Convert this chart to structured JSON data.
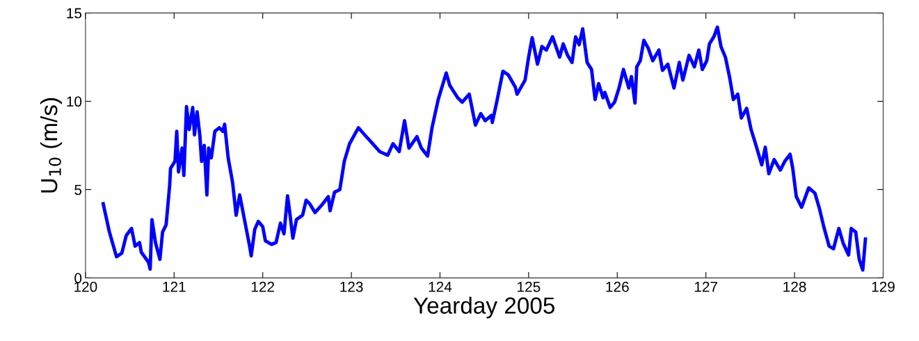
{
  "chart_data": {
    "type": "line",
    "xlabel": "Yearday 2005",
    "ylabel": "U$_{10}$ (m/s)",
    "xlim": [
      120,
      129
    ],
    "xticks": [
      120,
      121,
      122,
      123,
      124,
      125,
      126,
      127,
      128,
      129
    ],
    "ylim": [
      0,
      15
    ],
    "yticks": [
      0,
      5,
      10,
      15
    ],
    "grid": false,
    "marker": "none",
    "line_style": "solid",
    "series": [
      {
        "color": "#0000ff",
        "x": [
          120.2,
          120.27,
          120.35,
          120.41,
          120.46,
          120.52,
          120.56,
          120.61,
          120.63,
          120.71,
          120.73,
          120.75,
          120.79,
          120.84,
          120.87,
          120.91,
          120.95,
          120.96,
          121.01,
          121.03,
          121.05,
          121.09,
          121.11,
          121.14,
          121.17,
          121.21,
          121.23,
          121.26,
          121.29,
          121.31,
          121.34,
          121.37,
          121.39,
          121.42,
          121.46,
          121.51,
          121.55,
          121.57,
          121.61,
          121.66,
          121.7,
          121.74,
          121.79,
          121.85,
          121.87,
          121.91,
          121.95,
          122.0,
          122.03,
          122.1,
          122.15,
          122.2,
          122.24,
          122.28,
          122.3,
          122.34,
          122.38,
          122.45,
          122.49,
          122.53,
          122.59,
          122.67,
          122.74,
          122.76,
          122.81,
          122.87,
          122.92,
          122.98,
          123.08,
          123.15,
          123.24,
          123.32,
          123.41,
          123.47,
          123.54,
          123.6,
          123.65,
          123.74,
          123.79,
          123.86,
          123.91,
          123.98,
          124.07,
          124.11,
          124.2,
          124.25,
          124.33,
          124.4,
          124.46,
          124.51,
          124.58,
          124.59,
          124.64,
          124.71,
          124.77,
          124.85,
          124.87,
          124.96,
          125.0,
          125.04,
          125.1,
          125.15,
          125.2,
          125.27,
          125.35,
          125.39,
          125.44,
          125.49,
          125.53,
          125.57,
          125.61,
          125.66,
          125.71,
          125.75,
          125.79,
          125.84,
          125.86,
          125.92,
          125.97,
          126.02,
          126.07,
          126.13,
          126.16,
          126.2,
          126.22,
          126.26,
          126.3,
          126.35,
          126.4,
          126.47,
          126.51,
          126.57,
          126.64,
          126.7,
          126.74,
          126.81,
          126.87,
          126.92,
          126.96,
          127.01,
          127.04,
          127.09,
          127.13,
          127.17,
          127.22,
          127.27,
          127.31,
          127.36,
          127.4,
          127.46,
          127.51,
          127.56,
          127.63,
          127.67,
          127.71,
          127.77,
          127.84,
          127.89,
          127.95,
          127.98,
          128.02,
          128.08,
          128.16,
          128.23,
          128.28,
          128.33,
          128.39,
          128.44,
          128.5,
          128.55,
          128.61,
          128.64,
          128.69,
          128.73,
          128.77,
          128.8
        ],
        "values": [
          4.2,
          2.6,
          1.2,
          1.4,
          2.4,
          2.8,
          1.8,
          2.0,
          1.45,
          0.9,
          0.5,
          3.3,
          2.0,
          1.05,
          2.6,
          3.0,
          5.25,
          6.2,
          6.6,
          8.3,
          6.0,
          7.35,
          5.8,
          9.7,
          8.4,
          9.65,
          8.1,
          9.4,
          8.1,
          6.6,
          7.5,
          4.7,
          7.35,
          6.8,
          8.3,
          8.5,
          8.3,
          8.7,
          6.8,
          5.4,
          3.55,
          4.7,
          3.4,
          1.85,
          1.25,
          2.75,
          3.2,
          2.9,
          2.1,
          1.9,
          2.0,
          3.1,
          2.5,
          4.65,
          3.9,
          2.25,
          3.3,
          3.55,
          4.4,
          4.2,
          3.7,
          4.15,
          4.6,
          3.8,
          4.85,
          5.0,
          6.6,
          7.6,
          8.5,
          8.1,
          7.6,
          7.15,
          6.95,
          7.6,
          7.15,
          8.9,
          7.35,
          8.0,
          7.35,
          6.9,
          8.5,
          10.1,
          11.6,
          10.9,
          10.2,
          9.95,
          10.4,
          8.65,
          9.3,
          8.9,
          9.2,
          8.8,
          9.95,
          11.7,
          11.5,
          10.8,
          10.4,
          11.2,
          12.5,
          13.6,
          12.1,
          13.1,
          12.9,
          13.65,
          12.5,
          13.25,
          12.6,
          12.2,
          13.65,
          13.2,
          14.1,
          12.2,
          11.8,
          10.1,
          11.0,
          10.2,
          10.5,
          9.65,
          9.95,
          10.75,
          11.8,
          10.75,
          11.4,
          9.9,
          11.95,
          12.3,
          13.45,
          13.0,
          12.3,
          12.9,
          11.75,
          12.1,
          10.75,
          12.2,
          11.2,
          12.6,
          11.95,
          12.9,
          11.8,
          12.3,
          13.25,
          13.65,
          14.2,
          13.1,
          12.5,
          11.3,
          10.1,
          10.4,
          9.05,
          9.6,
          8.4,
          7.6,
          6.4,
          7.4,
          5.9,
          6.7,
          6.1,
          6.6,
          7.0,
          6.2,
          4.6,
          4.0,
          5.1,
          4.8,
          3.95,
          2.9,
          1.8,
          1.65,
          2.8,
          1.95,
          1.3,
          2.8,
          2.6,
          1.05,
          0.45,
          2.2
        ]
      }
    ]
  }
}
